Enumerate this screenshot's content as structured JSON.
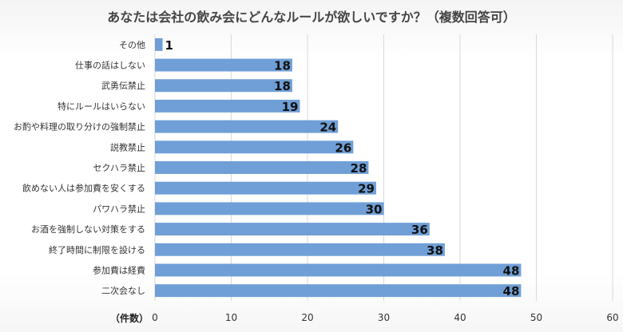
{
  "chart_data": {
    "type": "bar",
    "orientation": "horizontal",
    "title": "あなたは会社の飲み会にどんなルールが欲しいですか？（複数回答可）",
    "xlabel": "（件数）",
    "ylabel": "",
    "xlim": [
      0,
      60
    ],
    "xticks": [
      0,
      10,
      20,
      30,
      40,
      50,
      60
    ],
    "grid": true,
    "legend": "none",
    "bar_color": "#6f9fd6",
    "categories": [
      "その他",
      "仕事の話はしない",
      "武勇伝禁止",
      "特にルールはいらない",
      "お酌や料理の取り分けの強制禁止",
      "説教禁止",
      "セクハラ禁止",
      "飲めない人は参加費を安くする",
      "パワハラ禁止",
      "お酒を強制しない対策をする",
      "終了時間に制限を設ける",
      "参加費は経費",
      "二次会なし"
    ],
    "values": [
      1,
      18,
      18,
      19,
      24,
      26,
      28,
      29,
      30,
      36,
      38,
      48,
      48
    ]
  }
}
